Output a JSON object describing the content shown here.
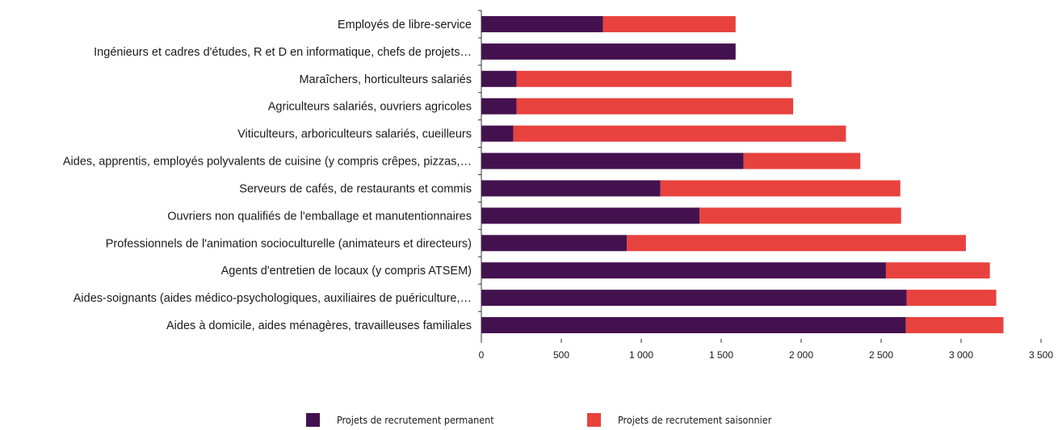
{
  "chart_data": {
    "type": "bar",
    "orientation": "horizontal",
    "stacked": true,
    "categories": [
      "Employés de libre-service",
      "Ingénieurs et cadres d'études, R et D en informatique, chefs de projets…",
      "Maraîchers, horticulteurs salariés",
      "Agriculteurs salariés, ouvriers agricoles",
      "Viticulteurs, arboriculteurs salariés, cueilleurs",
      "Aides, apprentis, employés polyvalents de cuisine (y compris crêpes, pizzas,…",
      "Serveurs de cafés, de restaurants et commis",
      "Ouvriers non qualifiés de l'emballage et manutentionnaires",
      "Professionnels de l'animation socioculturelle (animateurs et directeurs)",
      "Agents d'entretien de locaux (y compris ATSEM)",
      "Aides-soignants (aides médico-psychologiques, auxiliaires de puériculture,…",
      "Aides à domicile, aides ménagères, travailleuses familiales"
    ],
    "series": [
      {
        "name": "Projets de recrutement permanent",
        "color": "#44114f",
        "values": [
          760,
          1590,
          220,
          220,
          200,
          1640,
          1120,
          1365,
          910,
          2530,
          2660,
          2655
        ]
      },
      {
        "name": "Projets de recrutement saisonnier",
        "color": "#e8423e",
        "values": [
          830,
          0,
          1720,
          1730,
          2080,
          730,
          1500,
          1260,
          2120,
          650,
          560,
          610
        ]
      }
    ],
    "xlim": [
      0,
      3500
    ],
    "xticks": [
      0,
      500,
      1000,
      1500,
      2000,
      2500,
      3000,
      3500
    ],
    "xtick_labels": [
      "0",
      "500",
      "1 000",
      "1 500",
      "2 000",
      "2 500",
      "3 000",
      "3 500"
    ],
    "grid": false,
    "legend_position": "bottom"
  }
}
